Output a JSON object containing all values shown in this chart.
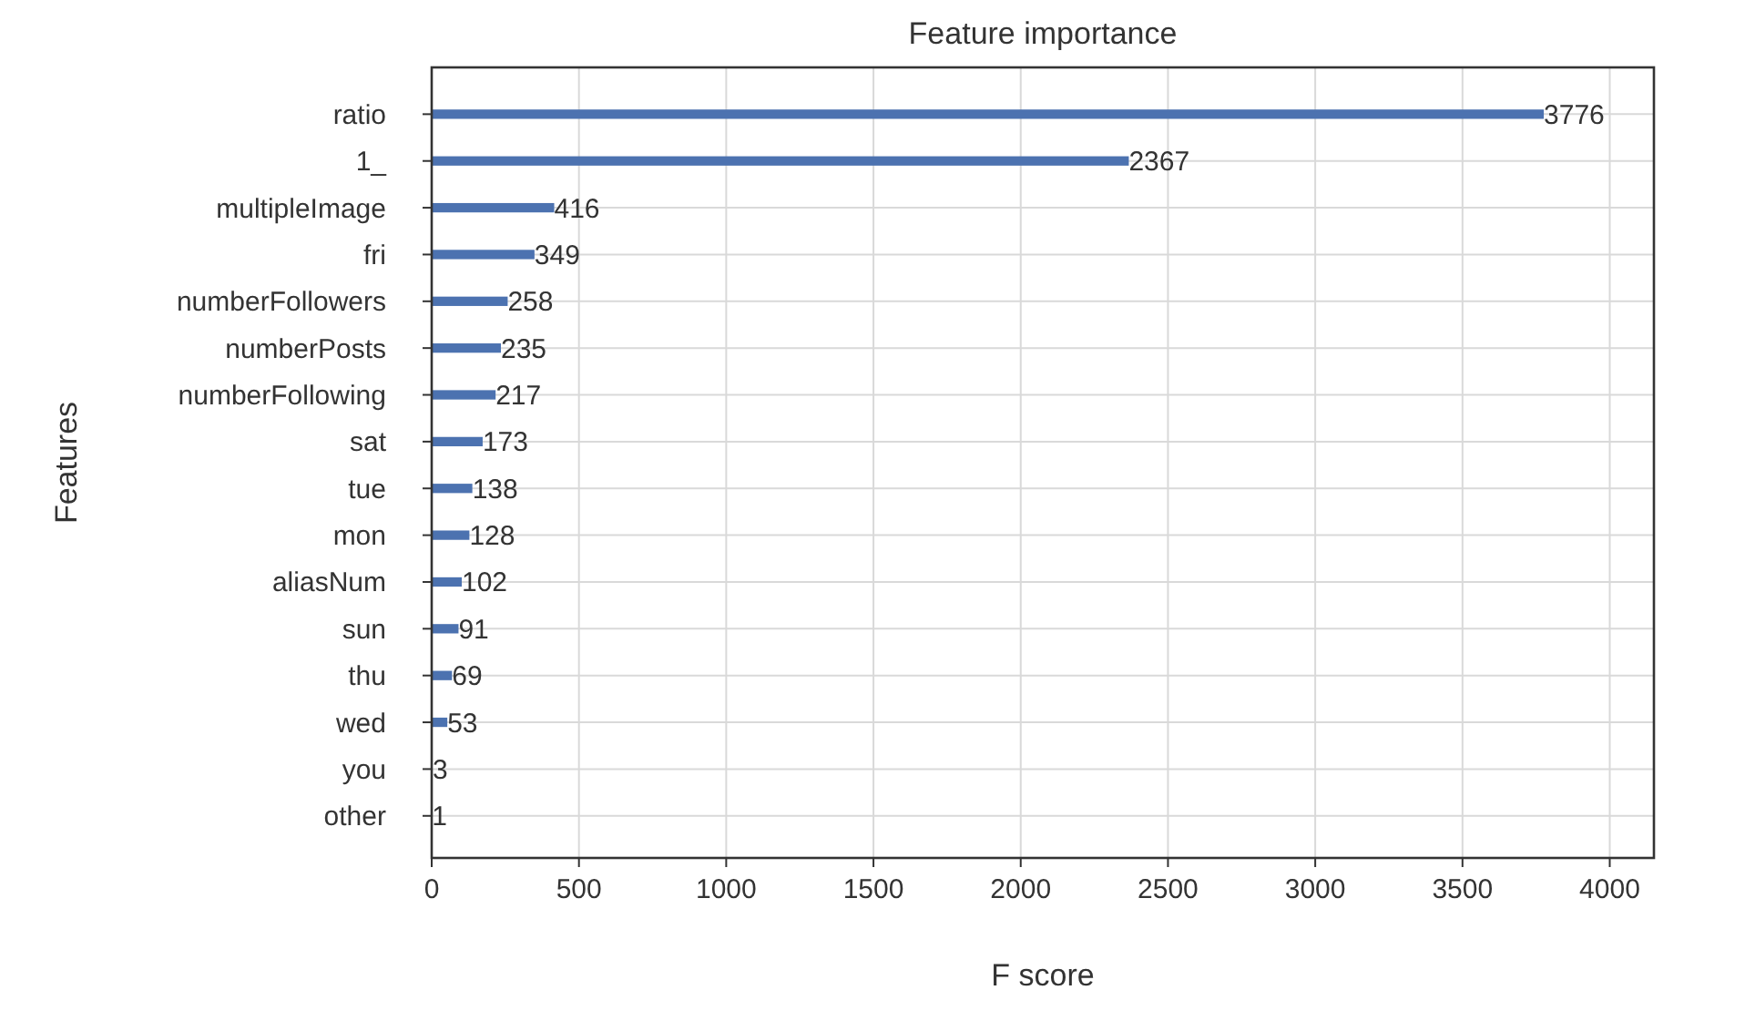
{
  "chart_data": {
    "type": "bar",
    "orientation": "horizontal",
    "title": "Feature importance",
    "xlabel": "F score",
    "ylabel": "Features",
    "categories": [
      "ratio",
      "1_",
      "multipleImage",
      "fri",
      "numberFollowers",
      "numberPosts",
      "numberFollowing",
      "sat",
      "tue",
      "mon",
      "aliasNum",
      "sun",
      "thu",
      "wed",
      "you",
      "other"
    ],
    "values": [
      3776,
      2367,
      416,
      349,
      258,
      235,
      217,
      173,
      138,
      128,
      102,
      91,
      69,
      53,
      3,
      1
    ],
    "color": "#4c72b0",
    "xlim": [
      0,
      4150
    ],
    "xticks": [
      0,
      500,
      1000,
      1500,
      2000,
      2500,
      3000,
      3500,
      4000
    ],
    "grid": true,
    "data_labels": true
  }
}
